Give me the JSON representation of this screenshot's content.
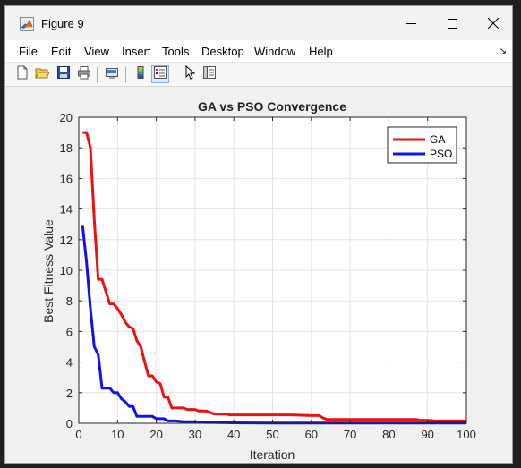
{
  "window": {
    "title": "Figure 9"
  },
  "title_bar_buttons": [
    "minimize-icon",
    "maximize-icon",
    "close-icon"
  ],
  "menu": {
    "items": [
      "File",
      "Edit",
      "View",
      "Insert",
      "Tools",
      "Desktop",
      "Window",
      "Help"
    ],
    "overflow_icon": "dock-arrow-icon"
  },
  "toolbar": {
    "buttons": [
      "new-figure-icon",
      "open-file-icon",
      "save-icon",
      "print-icon",
      "link-plot-icon",
      "colorbar-icon",
      "legend-icon",
      "pointer-icon",
      "property-inspector-icon"
    ],
    "active": "legend-icon"
  },
  "chart_data": {
    "type": "line",
    "title": "GA vs PSO Convergence",
    "xlabel": "Iteration",
    "ylabel": "Best Fitness Value",
    "xlim": [
      0,
      100
    ],
    "ylim": [
      0,
      20
    ],
    "xticks": [
      0,
      10,
      20,
      30,
      40,
      50,
      60,
      70,
      80,
      90,
      100
    ],
    "yticks": [
      0,
      2,
      4,
      6,
      8,
      10,
      12,
      14,
      16,
      18,
      20
    ],
    "grid": true,
    "legend_position": "top-right",
    "series": [
      {
        "name": "GA",
        "color": "#ee1111",
        "x": [
          1,
          2,
          3,
          4,
          5,
          6,
          7,
          8,
          9,
          10,
          11,
          12,
          13,
          14,
          15,
          16,
          17,
          18,
          19,
          20,
          21,
          22,
          23,
          24,
          25,
          26,
          27,
          28,
          29,
          30,
          31,
          32,
          33,
          34,
          35,
          36,
          37,
          38,
          39,
          40,
          45,
          50,
          55,
          60,
          62,
          63,
          64,
          65,
          70,
          75,
          80,
          85,
          87,
          88,
          90,
          92,
          95,
          100
        ],
        "y": [
          19.0,
          19.0,
          18.0,
          13.3,
          9.4,
          9.4,
          8.6,
          7.8,
          7.8,
          7.5,
          7.1,
          6.6,
          6.3,
          6.2,
          5.4,
          5.0,
          4.0,
          3.1,
          3.1,
          2.7,
          2.6,
          1.7,
          1.7,
          1.0,
          1.0,
          1.0,
          1.0,
          0.9,
          0.9,
          0.9,
          0.8,
          0.8,
          0.8,
          0.7,
          0.6,
          0.6,
          0.6,
          0.6,
          0.55,
          0.55,
          0.55,
          0.55,
          0.55,
          0.5,
          0.5,
          0.35,
          0.25,
          0.25,
          0.25,
          0.25,
          0.25,
          0.25,
          0.25,
          0.2,
          0.2,
          0.15,
          0.15,
          0.15
        ]
      },
      {
        "name": "PSO",
        "color": "#1111ee",
        "x": [
          1,
          2,
          3,
          4,
          5,
          6,
          7,
          8,
          9,
          10,
          11,
          12,
          13,
          14,
          15,
          16,
          17,
          18,
          19,
          20,
          21,
          22,
          23,
          25,
          27,
          30,
          33,
          35,
          40,
          50,
          60,
          70,
          80,
          90,
          100
        ],
        "y": [
          12.9,
          10.5,
          7.5,
          5.0,
          4.5,
          2.3,
          2.3,
          2.3,
          2.0,
          2.0,
          1.6,
          1.4,
          1.1,
          1.1,
          0.45,
          0.45,
          0.45,
          0.45,
          0.45,
          0.3,
          0.3,
          0.3,
          0.15,
          0.15,
          0.1,
          0.1,
          0.05,
          0.05,
          0.03,
          0.02,
          0.02,
          0.02,
          0.02,
          0.02,
          0.02
        ]
      }
    ]
  }
}
